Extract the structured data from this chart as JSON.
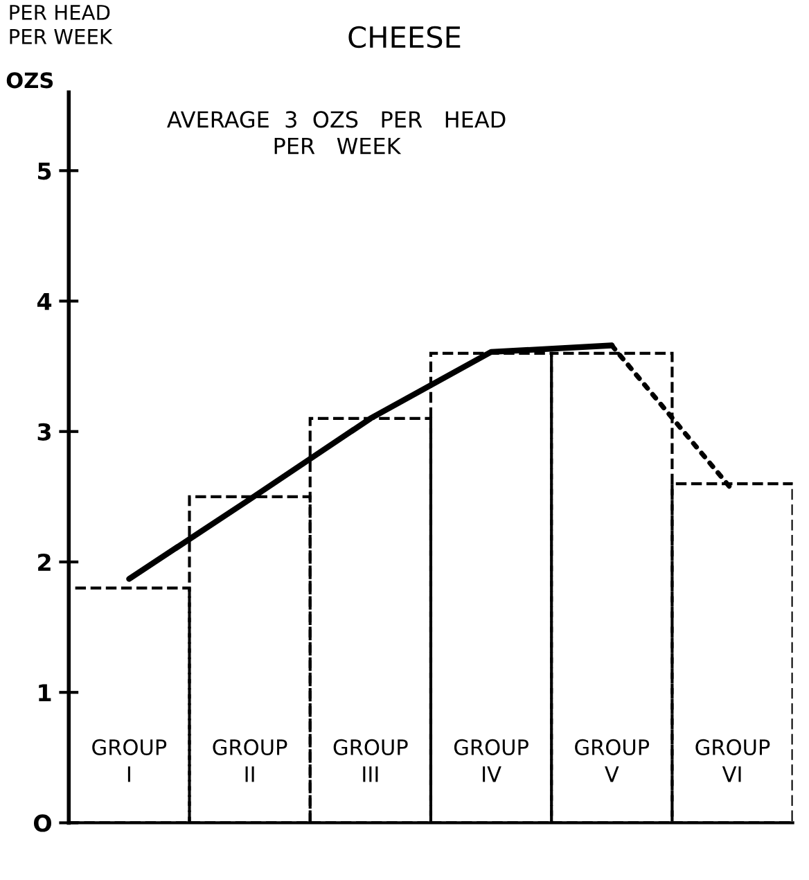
{
  "chart_data": {
    "type": "bar",
    "title": "CHEESE",
    "ylabel": "OZS",
    "subtitle": "PER HEAD\nPER WEEK",
    "annotations": [
      "AVERAGE  3  OZS   PER   HEAD\nPER   WEEK"
    ],
    "categories": [
      "GROUP\nI",
      "GROUP\nII",
      "GROUP\nIII",
      "GROUP\nIV",
      "GROUP\nV",
      "GROUP\nVI"
    ],
    "series": [
      {
        "color": "#000000",
        "line_style": "dashed",
        "values": [
          1.8,
          2.5,
          3.1,
          3.6,
          3.6,
          2.6
        ]
      },
      {
        "type": "line",
        "color": "#000000",
        "line_style": "solid",
        "values": [
          1.87,
          2.48,
          3.1,
          3.61,
          3.66,
          null
        ]
      },
      {
        "type": "line",
        "color": "#000000",
        "line_style": "dotted",
        "values": [
          null,
          null,
          null,
          null,
          3.66,
          2.55
        ]
      }
    ],
    "ylim": [
      0,
      5.6
    ],
    "yticks": [
      {
        "value": 0,
        "label": "O"
      },
      1,
      2,
      3,
      4,
      5
    ],
    "grid": false,
    "legend": false
  }
}
